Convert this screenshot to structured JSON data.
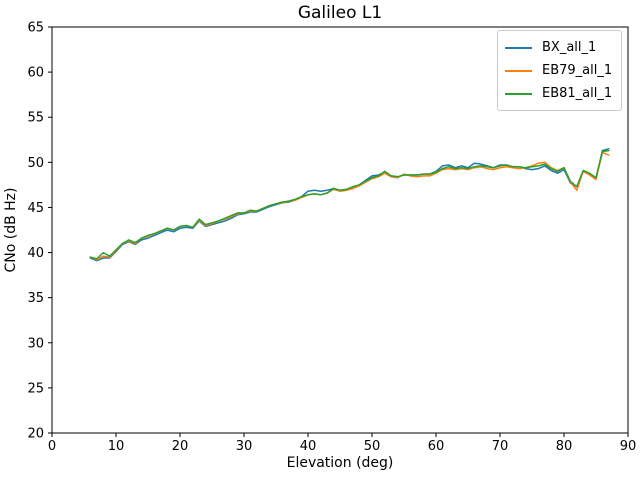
{
  "title": "Galileo L1",
  "chart_data": {
    "type": "line",
    "title": "Galileo L1",
    "xlabel": "Elevation (deg)",
    "ylabel": "CNo (dB Hz)",
    "xlim": [
      0,
      90
    ],
    "ylim": [
      20,
      65
    ],
    "x_ticks": [
      0,
      10,
      20,
      30,
      40,
      50,
      60,
      70,
      80,
      90
    ],
    "y_ticks": [
      20,
      25,
      30,
      35,
      40,
      45,
      50,
      55,
      60,
      65
    ],
    "grid": false,
    "legend_position": "upper right",
    "line_width": 1.5,
    "x": [
      6,
      7,
      8,
      9,
      10,
      11,
      12,
      13,
      14,
      15,
      16,
      17,
      18,
      19,
      20,
      21,
      22,
      23,
      24,
      25,
      26,
      27,
      28,
      29,
      30,
      31,
      32,
      33,
      34,
      35,
      36,
      37,
      38,
      39,
      40,
      41,
      42,
      43,
      44,
      45,
      46,
      47,
      48,
      49,
      50,
      51,
      52,
      53,
      54,
      55,
      56,
      57,
      58,
      59,
      60,
      61,
      62,
      63,
      64,
      65,
      66,
      67,
      68,
      69,
      70,
      71,
      72,
      73,
      74,
      75,
      76,
      77,
      78,
      79,
      80,
      81,
      82,
      83,
      84,
      85,
      86,
      87
    ],
    "series": [
      {
        "name": "BX_all_1",
        "color": "#1f77b4",
        "values": [
          39.4,
          39.1,
          39.4,
          39.4,
          40.1,
          40.9,
          41.2,
          40.9,
          41.4,
          41.6,
          41.9,
          42.2,
          42.5,
          42.3,
          42.7,
          42.8,
          42.7,
          43.5,
          42.9,
          43.1,
          43.3,
          43.5,
          43.8,
          44.2,
          44.3,
          44.5,
          44.5,
          44.8,
          45.1,
          45.3,
          45.5,
          45.6,
          45.8,
          46.2,
          46.8,
          46.9,
          46.8,
          46.9,
          47.1,
          46.9,
          47.0,
          47.2,
          47.5,
          48.0,
          48.5,
          48.6,
          48.9,
          48.5,
          48.4,
          48.6,
          48.6,
          48.6,
          48.7,
          48.7,
          49.0,
          49.6,
          49.7,
          49.4,
          49.6,
          49.4,
          49.9,
          49.8,
          49.6,
          49.4,
          49.7,
          49.7,
          49.5,
          49.5,
          49.3,
          49.2,
          49.3,
          49.6,
          49.1,
          48.8,
          49.2,
          47.7,
          47.3,
          49.0,
          48.7,
          48.2,
          51.3,
          51.5
        ]
      },
      {
        "name": "EB79_all_1",
        "color": "#ff7f0e",
        "values": [
          39.5,
          39.2,
          39.6,
          39.5,
          40.2,
          41.0,
          41.3,
          41.0,
          41.6,
          41.8,
          42.1,
          42.4,
          42.7,
          42.5,
          42.9,
          43.0,
          42.8,
          43.6,
          43.0,
          43.2,
          43.5,
          43.7,
          44.0,
          44.3,
          44.4,
          44.6,
          44.6,
          44.9,
          45.2,
          45.4,
          45.5,
          45.7,
          45.8,
          46.1,
          46.4,
          46.5,
          46.4,
          46.6,
          47.0,
          46.8,
          46.9,
          47.1,
          47.4,
          47.8,
          48.2,
          48.4,
          48.8,
          48.4,
          48.3,
          48.7,
          48.5,
          48.4,
          48.5,
          48.5,
          48.8,
          49.2,
          49.3,
          49.2,
          49.3,
          49.2,
          49.4,
          49.5,
          49.3,
          49.2,
          49.4,
          49.5,
          49.4,
          49.3,
          49.4,
          49.6,
          49.9,
          50.0,
          49.4,
          49.1,
          49.4,
          47.8,
          46.9,
          49.0,
          48.6,
          48.1,
          51.1,
          50.8
        ]
      },
      {
        "name": "EB81_all_1",
        "color": "#2ca02c",
        "values": [
          39.5,
          39.3,
          40.0,
          39.6,
          40.3,
          41.0,
          41.4,
          41.1,
          41.6,
          41.9,
          42.1,
          42.4,
          42.7,
          42.5,
          42.9,
          43.0,
          42.8,
          43.7,
          43.1,
          43.3,
          43.5,
          43.8,
          44.1,
          44.4,
          44.4,
          44.7,
          44.6,
          44.9,
          45.2,
          45.4,
          45.6,
          45.7,
          45.9,
          46.2,
          46.4,
          46.5,
          46.4,
          46.6,
          47.1,
          46.9,
          47.0,
          47.3,
          47.5,
          47.9,
          48.3,
          48.5,
          49.0,
          48.5,
          48.4,
          48.6,
          48.6,
          48.6,
          48.7,
          48.7,
          48.9,
          49.3,
          49.5,
          49.3,
          49.4,
          49.3,
          49.5,
          49.6,
          49.5,
          49.4,
          49.6,
          49.7,
          49.5,
          49.5,
          49.4,
          49.5,
          49.6,
          49.8,
          49.3,
          49.0,
          49.4,
          47.9,
          47.3,
          49.1,
          48.8,
          48.3,
          51.2,
          51.3
        ]
      }
    ]
  }
}
